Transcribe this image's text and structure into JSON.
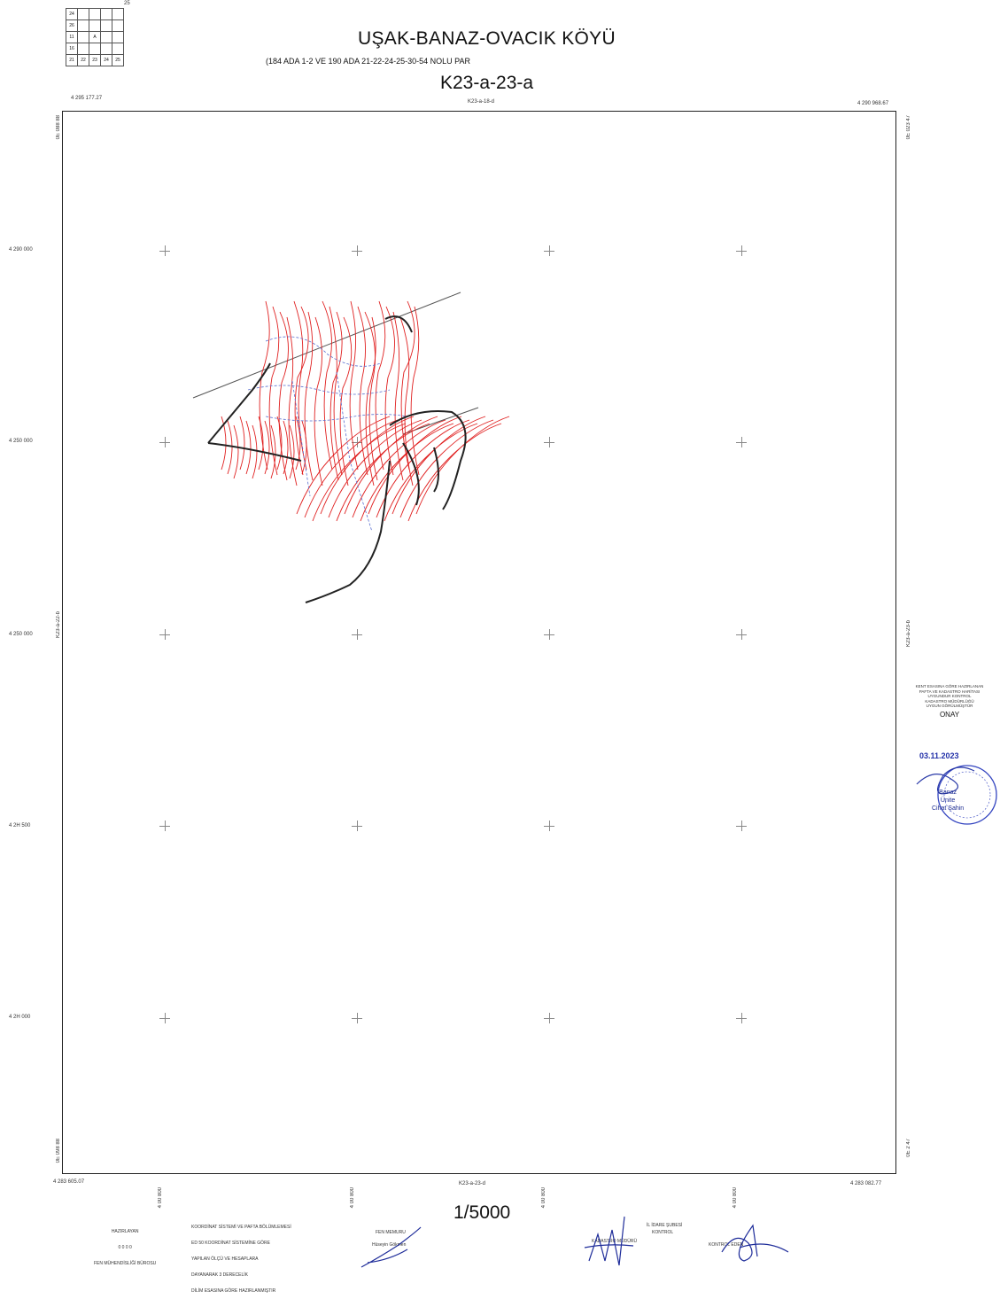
{
  "header": {
    "title": "UŞAK-BANAZ-OVACIK KÖYÜ",
    "subtitle": "(184 ADA 1-2 VE 190 ADA 21-22-24-25-30-54 NOLU PAR",
    "sheet_code": "K23-a-23-a"
  },
  "index_map": {
    "corner_label": "25",
    "rows": [
      [
        "24",
        "",
        "",
        "",
        ""
      ],
      [
        "26",
        "",
        "",
        "",
        ""
      ],
      [
        "11",
        "",
        "A",
        "",
        ""
      ],
      [
        "16",
        "",
        "",
        "",
        ""
      ],
      [
        "21",
        "22",
        "23",
        "24",
        "25"
      ]
    ]
  },
  "frame": {
    "top_left_coord": "4 295 177.27",
    "top_right_coord": "4 290 968.67",
    "bottom_left_coord": "4 283 605.07",
    "bottom_right_coord": "4 283 082.77",
    "top_neighbor": "K23-a-18-d",
    "bottom_neighbor": "K23-a-23-d",
    "left_neighbor": "K23-a-22-b",
    "right_neighbor": "K23-a-23-b",
    "left_top_easting": "0E 088 88",
    "right_top_easting": "0E 023 47",
    "left_bottom_easting": "0E 098 88",
    "right_bottom_easting": "0E 2 47"
  },
  "grid_labels_left": [
    "4 290 000",
    "4 250 000",
    "4 250 000",
    "4 2H 500",
    "4 2H 000"
  ],
  "grid_labels_bottom": [
    "4 00 800",
    "4 00 800",
    "4 00 800",
    "4 00 800"
  ],
  "scale": "1/5000",
  "approval": {
    "header_lines": [
      "KENT ESASINA GÖRE HAZIRLANAN",
      "PAFTA VE KADASTRO HARİTASI",
      "UYGUNDUR KONTROL",
      "KADASTRO MÜDÜRLÜĞÜ",
      "UYGUN GÖRÜLMÜŞTÜR"
    ],
    "onay": "ONAY",
    "date": "03.11.2023",
    "stamp_lines": [
      "Banaz",
      "Ünite",
      "Cihat Şahin"
    ]
  },
  "footer": {
    "left_block": [
      "HAZIRLAYAN",
      "0 0 0 0",
      "FEN MÜHENDİSLİĞİ BÜROSU"
    ],
    "middle_block": [
      "KOORDİNAT SİSTEMİ VE PAFTA BÖLÜMLEMESİ",
      "ED 50 KOORDİNAT SİSTEMİNE GÖRE",
      "YAPILAN ÖLÇÜ VE HESAPLARA",
      "DAYANARAK 3 DERECELİK",
      "DİLİM ESASINA GÖRE HAZIRLANMIŞTIR"
    ],
    "sig1_label": "FEN MEMURU",
    "sig1_name": "Hüseyin Gökmen",
    "sig2_label": "KADASTRO MÜDÜRÜ",
    "sig3_label": "İL İDARE ŞUBESİ",
    "sig3_sub": "KONTROL",
    "sig4_label": "KONTROL EDEN"
  }
}
